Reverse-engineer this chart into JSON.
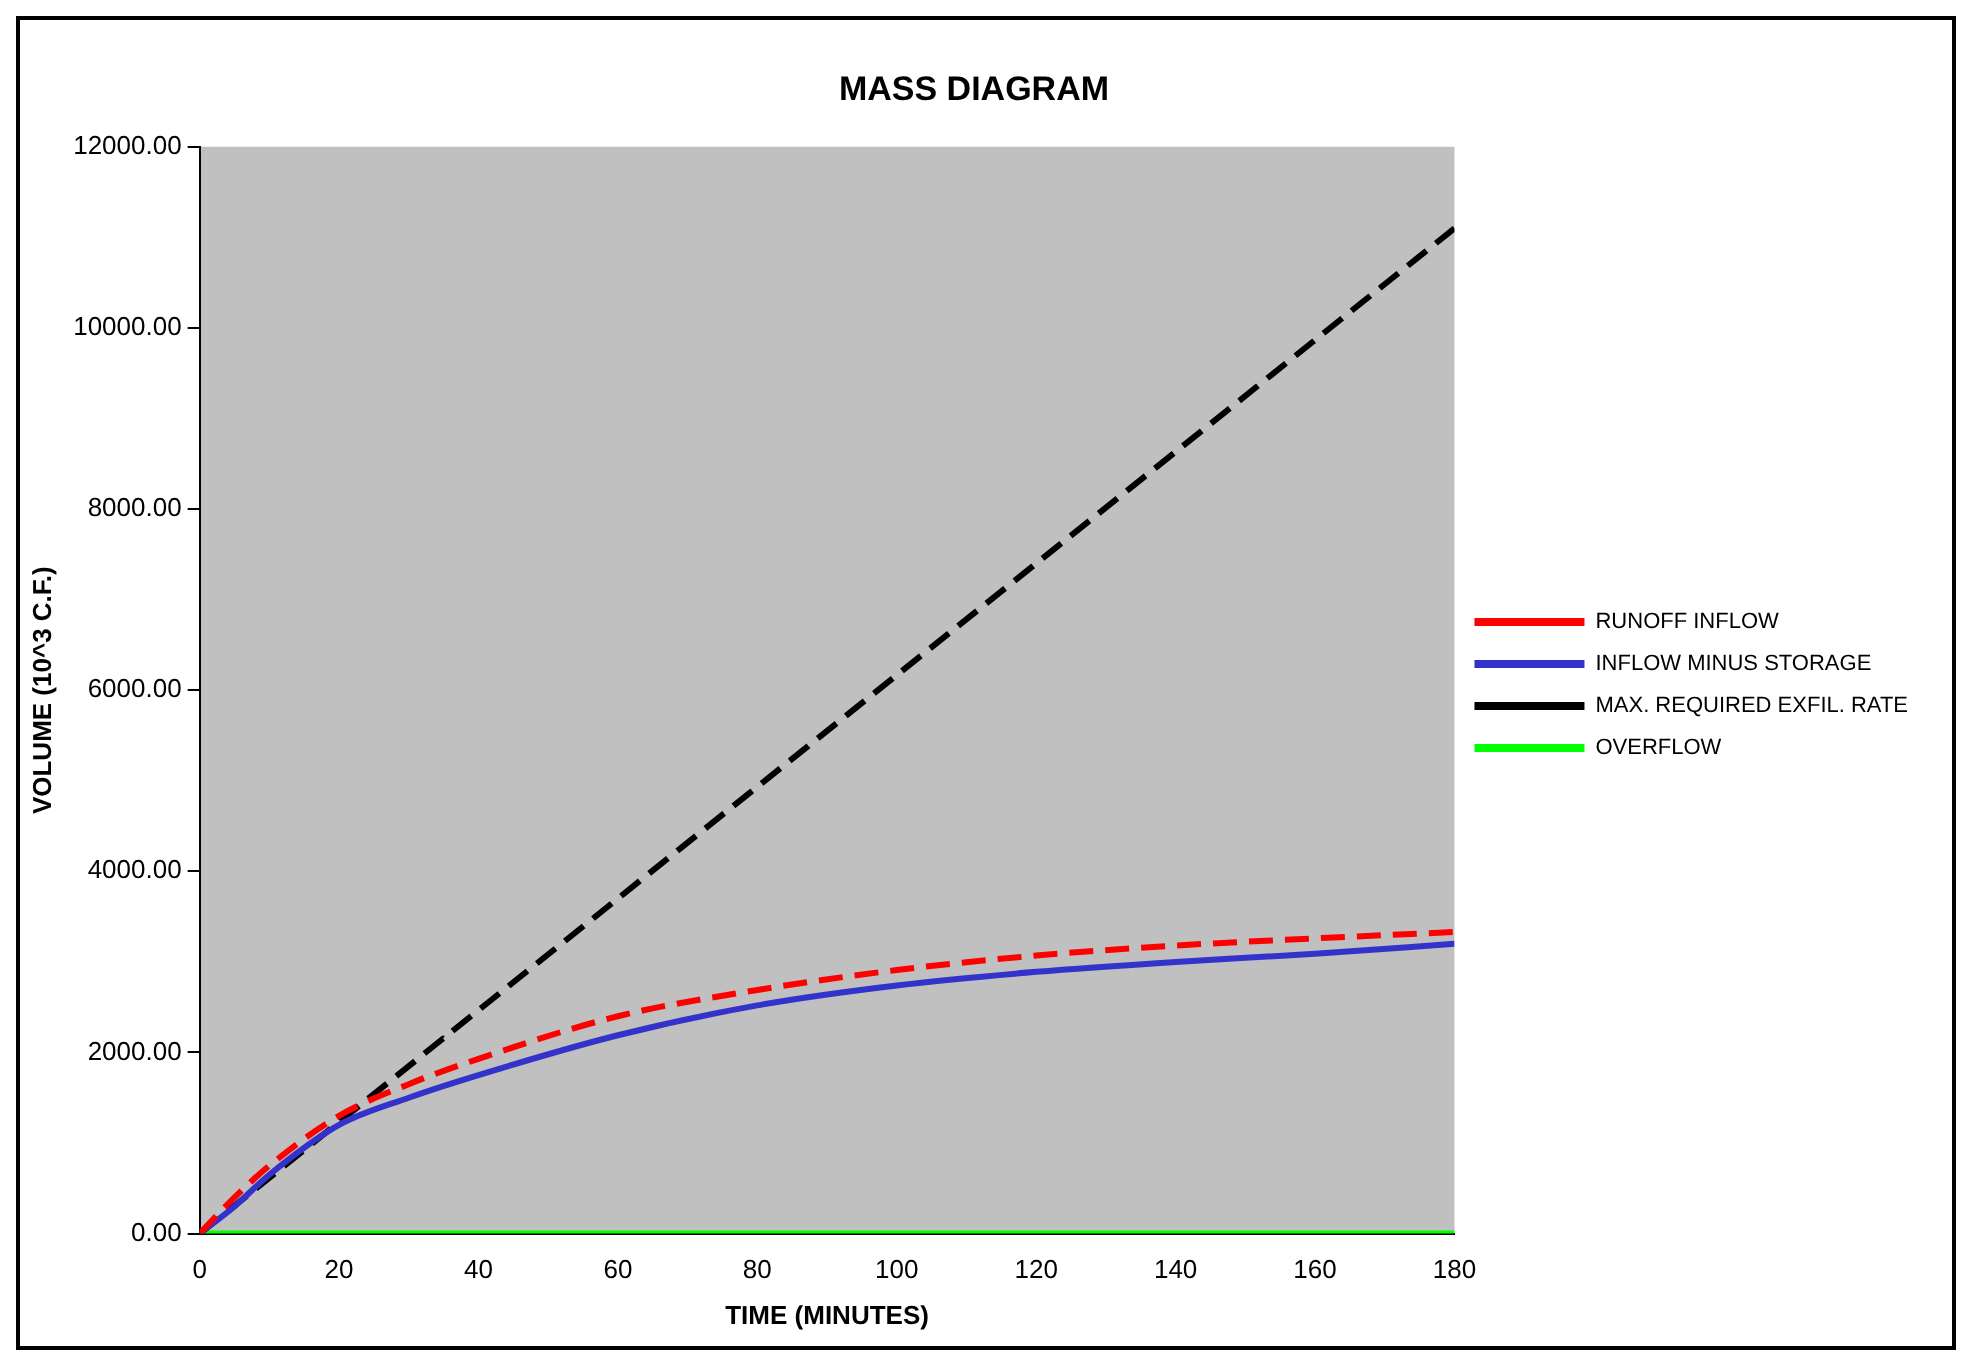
{
  "chart_data": {
    "type": "line",
    "title": "MASS DIAGRAM",
    "xlabel": "TIME (MINUTES)",
    "ylabel": "VOLUME (10^3 C.F.)",
    "x": [
      0,
      5,
      10,
      20,
      30,
      40,
      60,
      80,
      100,
      120,
      140,
      160,
      180
    ],
    "series": [
      {
        "name": "RUNOFF INFLOW",
        "color": "#ff0000",
        "line_style": "dashed",
        "values": [
          0,
          400,
          750,
          1300,
          1650,
          1930,
          2400,
          2690,
          2910,
          3070,
          3180,
          3260,
          3330
        ]
      },
      {
        "name": "INFLOW MINUS STORAGE",
        "color": "#3333cc",
        "line_style": "solid",
        "values": [
          0,
          300,
          650,
          1200,
          1500,
          1750,
          2190,
          2520,
          2740,
          2890,
          3000,
          3090,
          3200
        ]
      },
      {
        "name": "MAX. REQUIRED EXFIL. RATE",
        "color": "#000000",
        "line_style": "dashed",
        "x": [
          0,
          180
        ],
        "values": [
          0,
          11100
        ]
      },
      {
        "name": "OVERFLOW",
        "color": "#00ff00",
        "line_style": "solid",
        "values": [
          0,
          0,
          0,
          0,
          0,
          0,
          0,
          0,
          0,
          0,
          0,
          0,
          0
        ]
      }
    ],
    "xlim": [
      0,
      180
    ],
    "xticks": [
      0,
      20,
      40,
      60,
      80,
      100,
      120,
      140,
      160,
      180
    ],
    "ylim": [
      0,
      12000
    ],
    "yticks": [
      {
        "value": 0,
        "label": "0.00"
      },
      {
        "value": 2000,
        "label": "2000.00"
      },
      {
        "value": 4000,
        "label": "4000.00"
      },
      {
        "value": 6000,
        "label": "6000.00"
      },
      {
        "value": 8000,
        "label": "8000.00"
      },
      {
        "value": 10000,
        "label": "10000.00"
      },
      {
        "value": 12000,
        "label": "12000.00"
      }
    ],
    "grid": false,
    "legend": "right",
    "marker": "none"
  }
}
